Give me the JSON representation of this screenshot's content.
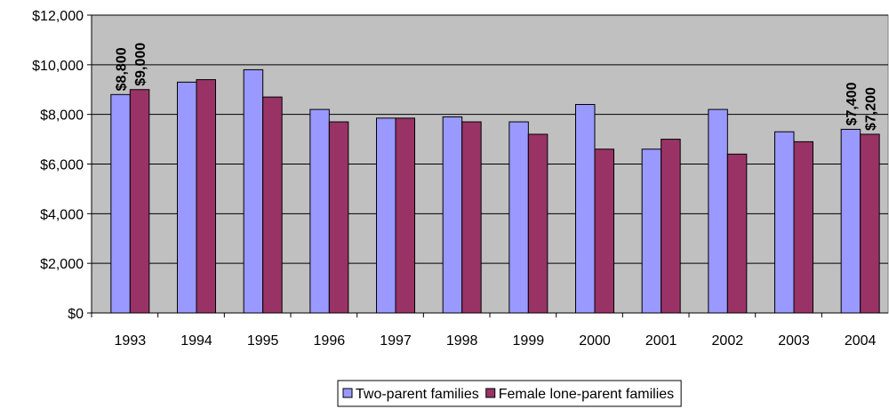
{
  "chart_data": {
    "type": "bar",
    "categories": [
      "1993",
      "1994",
      "1995",
      "1996",
      "1997",
      "1998",
      "1999",
      "2000",
      "2001",
      "2002",
      "2003",
      "2004"
    ],
    "series": [
      {
        "name": "Two-parent families",
        "color": "#9999ff",
        "values": [
          8800,
          9300,
          9800,
          8200,
          7850,
          7900,
          7700,
          8400,
          6600,
          8200,
          7300,
          7400
        ],
        "value_labels": [
          "$8,800",
          null,
          null,
          null,
          null,
          null,
          null,
          null,
          null,
          null,
          null,
          "$7,400"
        ]
      },
      {
        "name": "Female lone-parent families",
        "color": "#993366",
        "values": [
          9000,
          9400,
          8700,
          7700,
          7850,
          7700,
          7200,
          6600,
          7000,
          6400,
          6900,
          7200
        ],
        "value_labels": [
          "$9,000",
          null,
          null,
          null,
          null,
          null,
          null,
          null,
          null,
          null,
          null,
          "$7,200"
        ]
      }
    ],
    "ylim": [
      0,
      12000
    ],
    "yticks": [
      {
        "value": 0,
        "label": "$0"
      },
      {
        "value": 2000,
        "label": "$2,000"
      },
      {
        "value": 4000,
        "label": "$4,000"
      },
      {
        "value": 6000,
        "label": "$6,000"
      },
      {
        "value": 8000,
        "label": "$8,000"
      },
      {
        "value": 10000,
        "label": "$10,000"
      },
      {
        "value": 12000,
        "label": "$12,000"
      }
    ],
    "grid": true,
    "legend": "bottom",
    "plot_background": "#c0c0c0"
  }
}
